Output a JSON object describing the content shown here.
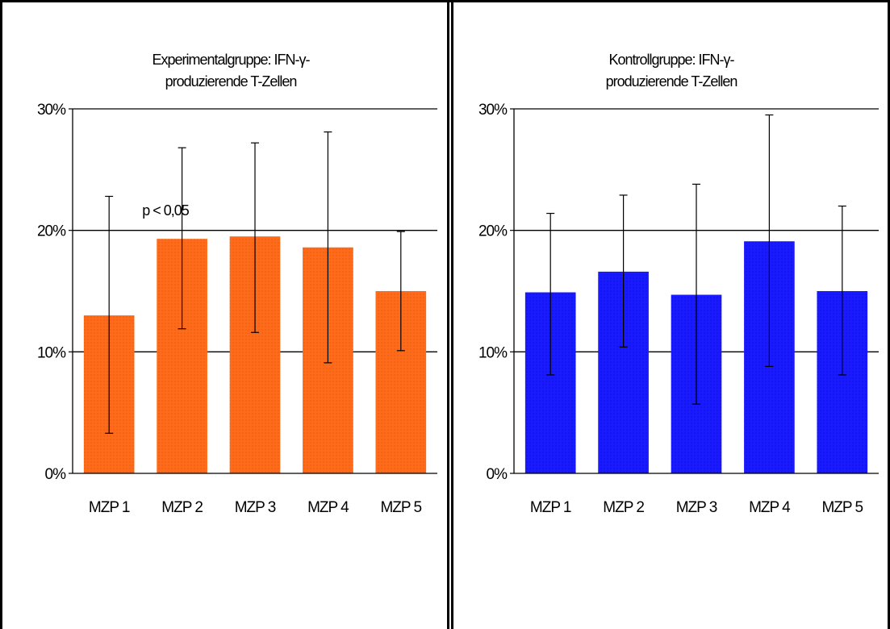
{
  "chart_data": [
    {
      "type": "bar",
      "title": [
        "Experimentalgruppe: IFN-γ-",
        "produzierende T-Zellen"
      ],
      "categories": [
        "MZP 1",
        "MZP 2",
        "MZP 3",
        "MZP 4",
        "MZP 5"
      ],
      "values": [
        13.0,
        19.3,
        19.5,
        18.6,
        15.0
      ],
      "error_low": [
        3.3,
        11.9,
        11.6,
        9.1,
        10.1
      ],
      "error_high": [
        22.8,
        26.8,
        27.2,
        28.1,
        19.9
      ],
      "ylim": [
        0,
        30
      ],
      "yticks": [
        0,
        10,
        20,
        30
      ],
      "ytick_labels": [
        "0%",
        "10%",
        "20%",
        "30%"
      ],
      "grid": true,
      "bar_color": "#ff6b1a",
      "annotation": "p < 0,05"
    },
    {
      "type": "bar",
      "title": [
        "Kontrollgruppe: IFN-γ-",
        "produzierende T-Zellen"
      ],
      "categories": [
        "MZP 1",
        "MZP 2",
        "MZP 3",
        "MZP 4",
        "MZP 5"
      ],
      "values": [
        14.9,
        16.6,
        14.7,
        19.1,
        15.0
      ],
      "error_low": [
        8.1,
        10.4,
        5.7,
        8.8,
        8.1
      ],
      "error_high": [
        21.4,
        22.9,
        23.8,
        29.5,
        22.0
      ],
      "ylim": [
        0,
        30
      ],
      "yticks": [
        0,
        10,
        20,
        30
      ],
      "ytick_labels": [
        "0%",
        "10%",
        "20%",
        "30%"
      ],
      "grid": true,
      "bar_color": "#1a1aff"
    }
  ]
}
